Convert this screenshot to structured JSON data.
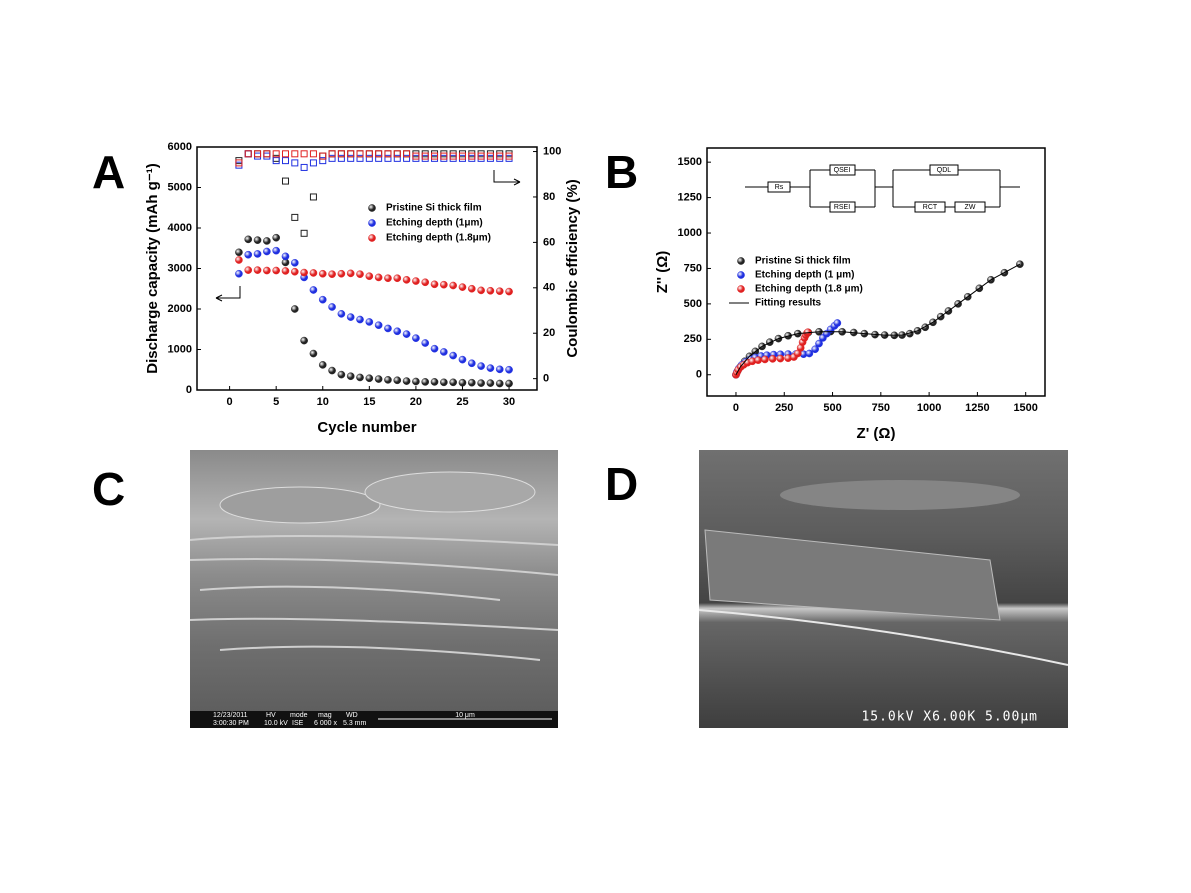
{
  "panels": [
    "A",
    "B",
    "C",
    "D"
  ],
  "chart_data": [
    {
      "type": "scatter",
      "xlabel": "Cycle number",
      "ylabel": "Discharge capacity (mAh g⁻¹)",
      "y2label": "Coulombic efficiency (%)",
      "x": [
        1,
        2,
        3,
        4,
        5,
        6,
        7,
        8,
        9,
        10,
        11,
        12,
        13,
        14,
        15,
        16,
        17,
        18,
        19,
        20,
        21,
        22,
        23,
        24,
        25,
        26,
        27,
        28,
        29,
        30
      ],
      "xlim": [
        -3.5,
        33
      ],
      "xticks": [
        0,
        5,
        10,
        15,
        20,
        25,
        30
      ],
      "ylim": [
        0,
        6000
      ],
      "yticks": [
        0,
        1000,
        2000,
        3000,
        4000,
        5000,
        6000
      ],
      "y2lim": [
        -5,
        102
      ],
      "y2ticks": [
        0,
        20,
        40,
        60,
        80,
        100
      ],
      "series": [
        {
          "name": "Pristine Si thick film",
          "color": "#222222",
          "values": [
            3400,
            3720,
            3700,
            3680,
            3760,
            3150,
            2000,
            1220,
            900,
            620,
            480,
            380,
            340,
            310,
            290,
            270,
            250,
            240,
            220,
            210,
            200,
            200,
            190,
            190,
            180,
            180,
            170,
            170,
            160,
            160
          ]
        },
        {
          "name": "Etching depth (1μm)",
          "color": "#1f2fe0",
          "values": [
            2870,
            3340,
            3360,
            3420,
            3440,
            3300,
            3140,
            2780,
            2470,
            2230,
            2050,
            1880,
            1800,
            1740,
            1680,
            1600,
            1520,
            1450,
            1380,
            1280,
            1160,
            1020,
            940,
            850,
            750,
            660,
            590,
            540,
            510,
            500
          ]
        },
        {
          "name": "Etching depth (1.8μm)",
          "color": "#e02020",
          "values": [
            3210,
            2960,
            2960,
            2950,
            2950,
            2940,
            2920,
            2900,
            2890,
            2870,
            2860,
            2870,
            2880,
            2860,
            2810,
            2780,
            2760,
            2760,
            2720,
            2690,
            2660,
            2610,
            2600,
            2580,
            2540,
            2500,
            2460,
            2450,
            2440,
            2430
          ]
        },
        {
          "color": "#222222",
          "marker": "square",
          "axis": "y2",
          "values": [
            96,
            99,
            99,
            99,
            97,
            87,
            71,
            64,
            80,
            98,
            99,
            99,
            99,
            99,
            99,
            99,
            99,
            99,
            99,
            99,
            99,
            99,
            99,
            99,
            99,
            99,
            99,
            99,
            99,
            99
          ]
        },
        {
          "color": "#1f2fe0",
          "marker": "square",
          "axis": "y2",
          "values": [
            94,
            99,
            98,
            98,
            96,
            96,
            95,
            93,
            95,
            96,
            97,
            97,
            97,
            97,
            97,
            97,
            97,
            97,
            97,
            97,
            97,
            97,
            97,
            97,
            97,
            97,
            97,
            97,
            97,
            97
          ]
        },
        {
          "color": "#e02020",
          "marker": "square",
          "axis": "y2",
          "values": [
            95,
            99,
            99,
            99,
            99,
            99,
            99,
            99,
            99,
            98,
            99,
            99,
            99,
            99,
            99,
            99,
            99,
            99,
            99,
            98,
            98,
            98,
            98,
            98,
            98,
            98,
            98,
            98,
            98,
            98
          ]
        }
      ]
    },
    {
      "type": "scatter",
      "xlabel": "Z' (Ω)",
      "ylabel": "Z'' (Ω)",
      "xlim": [
        -150,
        1600
      ],
      "xticks": [
        0,
        250,
        500,
        750,
        1000,
        1250,
        1500
      ],
      "ylim": [
        -150,
        1600
      ],
      "yticks": [
        0,
        250,
        500,
        750,
        1000,
        1250,
        1500
      ],
      "annotations": [
        "Rs",
        "QSEI",
        "RSEI",
        "QDL",
        "RCT",
        "ZW"
      ],
      "series": [
        {
          "name": "Pristine Si thick film",
          "color": "#222222",
          "x": [
            0,
            10,
            25,
            45,
            70,
            100,
            135,
            175,
            220,
            270,
            320,
            375,
            430,
            490,
            550,
            610,
            665,
            720,
            770,
            820,
            860,
            900,
            940,
            980,
            1020,
            1060,
            1100,
            1150,
            1200,
            1260,
            1320,
            1390,
            1470
          ],
          "values": [
            0,
            30,
            60,
            95,
            130,
            165,
            200,
            230,
            255,
            275,
            290,
            298,
            303,
            305,
            303,
            298,
            290,
            283,
            280,
            278,
            280,
            290,
            310,
            335,
            370,
            410,
            450,
            500,
            550,
            610,
            670,
            720,
            780
          ]
        },
        {
          "name": "Etching depth (1 μm)",
          "color": "#1f2fe0",
          "x": [
            0,
            5,
            15,
            30,
            50,
            75,
            100,
            130,
            160,
            195,
            230,
            270,
            310,
            350,
            380,
            410,
            430,
            450,
            470,
            490,
            510,
            525
          ],
          "values": [
            0,
            20,
            45,
            70,
            90,
            110,
            122,
            132,
            138,
            142,
            144,
            146,
            146,
            145,
            150,
            180,
            220,
            260,
            290,
            320,
            345,
            365
          ]
        },
        {
          "name": "Etching depth (1.8 μm)",
          "color": "#e02020",
          "x": [
            0,
            5,
            12,
            25,
            40,
            60,
            85,
            115,
            150,
            190,
            230,
            270,
            300,
            320,
            335,
            345,
            355,
            362,
            368,
            372
          ],
          "values": [
            0,
            15,
            35,
            55,
            70,
            85,
            95,
            103,
            108,
            112,
            114,
            117,
            125,
            150,
            190,
            230,
            260,
            280,
            295,
            300
          ]
        },
        {
          "name": "Fitting results",
          "color": "#000000",
          "style": "line",
          "x": [
            0,
            25,
            70,
            135,
            220,
            320,
            430,
            550,
            665,
            770,
            860,
            940,
            1020,
            1100,
            1200,
            1320,
            1470
          ],
          "values": [
            0,
            60,
            130,
            200,
            255,
            290,
            303,
            303,
            290,
            280,
            280,
            310,
            370,
            450,
            550,
            670,
            780
          ]
        }
      ]
    }
  ],
  "images": [
    {
      "texts": [
        "12/23/2011",
        "3:00:30 PM",
        "HV",
        "10.0 kV",
        "mode",
        "ISE",
        "mag",
        "6 000 x",
        "WD",
        "5.3 mm",
        "10 μm"
      ]
    },
    {
      "texts": [
        "15.0kV X6.00K 5.00μm"
      ]
    }
  ]
}
